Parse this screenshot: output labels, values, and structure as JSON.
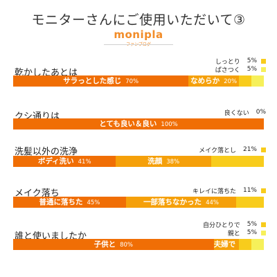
{
  "header": {
    "title": "モニターさんにご使用いただいて③",
    "logo": "monipla",
    "logo_sub": "ファンブログ"
  },
  "colors": {
    "dark_orange": "#f06e05",
    "mid_orange": "#f5a00a",
    "yellow": "#f8cc1c",
    "light_yellow": "#f6f05a"
  },
  "chart_data": [
    {
      "type": "bar",
      "title": "乾かしたあとは",
      "categories": [
        "サラっとした感じ",
        "なめらか",
        "しっとり",
        "ぱさつく"
      ],
      "values": [
        70,
        20,
        5,
        5
      ],
      "unit": "%",
      "segment_colors": [
        "#f06e05",
        "#f5a00a",
        "#f8cc1c",
        "#f6f05a"
      ],
      "bar_labels": [
        {
          "name": "サラっとした感じ",
          "value": "70%"
        },
        {
          "name": "なめらか",
          "value": "20%"
        },
        {
          "name": "",
          "value": ""
        },
        {
          "name": "",
          "value": ""
        }
      ],
      "legend": [
        {
          "label": "しっとり",
          "value": "5%",
          "color": "#f8cc1c"
        },
        {
          "label": "ぱさつく",
          "value": "5%",
          "color": "#f6f05a"
        }
      ]
    },
    {
      "type": "bar",
      "title": "クシ通りは",
      "categories": [
        "とても良い＆良い",
        "良くない"
      ],
      "values": [
        100,
        0
      ],
      "unit": "%",
      "segment_colors": [
        "#f06e05",
        "#f5a00a"
      ],
      "bar_labels": [
        {
          "name": "とても良い＆良い",
          "value": "100%"
        },
        {
          "name": "",
          "value": ""
        }
      ],
      "legend": [
        {
          "label": "良くない",
          "value": "0%",
          "color": ""
        }
      ]
    },
    {
      "type": "bar",
      "title": "洗髪以外の洗浄",
      "categories": [
        "ボディ洗い",
        "洗顔",
        "メイク落とし"
      ],
      "values": [
        41,
        38,
        21
      ],
      "unit": "%",
      "segment_colors": [
        "#f06e05",
        "#f5a00a",
        "#f8cc1c"
      ],
      "bar_labels": [
        {
          "name": "ボディ洗い",
          "value": "41%"
        },
        {
          "name": "洗顔",
          "value": "38%"
        },
        {
          "name": "",
          "value": ""
        }
      ],
      "legend": [
        {
          "label": "メイク落とし",
          "value": "21%",
          "color": "#f8cc1c"
        }
      ]
    },
    {
      "type": "bar",
      "title": "メイク落ち",
      "categories": [
        "普通に落ちた",
        "一部落ちなかった",
        "キレイに落ちた"
      ],
      "values": [
        45,
        44,
        11
      ],
      "unit": "%",
      "segment_colors": [
        "#f06e05",
        "#f5a00a",
        "#f8cc1c"
      ],
      "bar_labels": [
        {
          "name": "普通に落ちた",
          "value": "45%"
        },
        {
          "name": "一部落ちなかった",
          "value": "44%"
        },
        {
          "name": "",
          "value": ""
        }
      ],
      "legend": [
        {
          "label": "キレイに落ちた",
          "value": "11%",
          "color": "#f8cc1c"
        }
      ]
    },
    {
      "type": "bar",
      "title": "誰と使いましたか",
      "categories": [
        "子供と",
        "夫婦で",
        "自分ひとりで",
        "親と"
      ],
      "values": [
        80,
        10,
        5,
        5
      ],
      "unit": "%",
      "segment_colors": [
        "#f06e05",
        "#f5a00a",
        "#f8cc1c",
        "#f6f05a"
      ],
      "bar_labels": [
        {
          "name": "子供と",
          "value": "80%"
        },
        {
          "name": "夫婦で",
          "value": "10%"
        },
        {
          "name": "",
          "value": ""
        },
        {
          "name": "",
          "value": ""
        }
      ],
      "legend": [
        {
          "label": "自分ひとりで",
          "value": "5%",
          "color": "#f8cc1c"
        },
        {
          "label": "親と",
          "value": "5%",
          "color": "#f6f05a"
        }
      ]
    }
  ]
}
